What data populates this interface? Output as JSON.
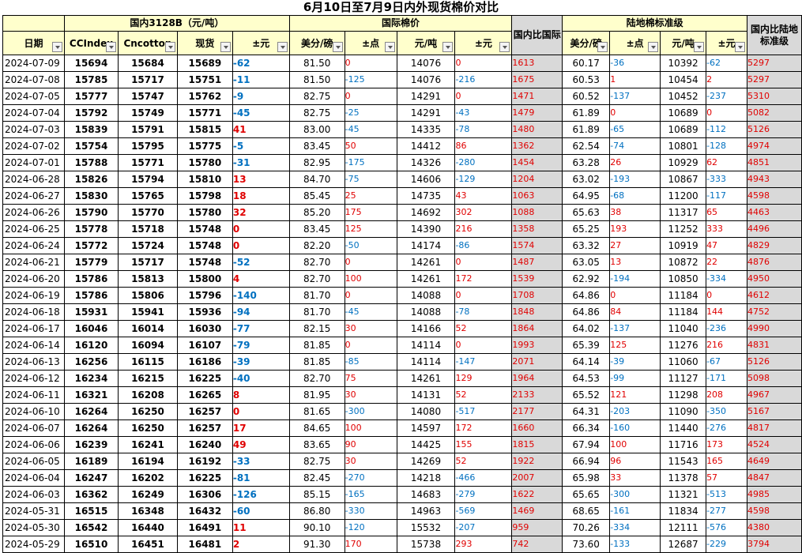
{
  "title": "6月10日至7月9日内外现货棉价对比",
  "groups": {
    "domestic": "国内3128B（元/吨）",
    "intl": "国际棉价",
    "intl_ratio": "国内比国际",
    "land": "陆地棉标准级",
    "land_ratio": "国内比陆地标准级"
  },
  "headers": [
    "日期",
    "CCIndex",
    "Cncotton",
    "现货",
    "±元",
    "美分/磅",
    "±点",
    "元/吨",
    "±元",
    "国内比国际",
    "美分/磅",
    "±点",
    "元/吨",
    "±元",
    "国内比陆地标准级"
  ],
  "rows": [
    [
      "2024-07-09",
      "15694",
      "15684",
      "15689",
      "-62",
      "81.50",
      "0",
      "14076",
      "0",
      "1613",
      "60.17",
      "-36",
      "10392",
      "-62",
      "5297"
    ],
    [
      "2024-07-08",
      "15785",
      "15717",
      "15751",
      "-11",
      "81.50",
      "-125",
      "14076",
      "-216",
      "1675",
      "60.53",
      "1",
      "10454",
      "2",
      "5297"
    ],
    [
      "2024-07-05",
      "15777",
      "15747",
      "15762",
      "-9",
      "82.75",
      "0",
      "14291",
      "0",
      "1471",
      "60.52",
      "-137",
      "10452",
      "-237",
      "5310"
    ],
    [
      "2024-07-04",
      "15792",
      "15749",
      "15771",
      "-45",
      "82.75",
      "-25",
      "14291",
      "-43",
      "1479",
      "61.89",
      "0",
      "10689",
      "0",
      "5082"
    ],
    [
      "2024-07-03",
      "15839",
      "15791",
      "15815",
      "41",
      "83.00",
      "-45",
      "14335",
      "-78",
      "1480",
      "61.89",
      "-65",
      "10689",
      "-112",
      "5126"
    ],
    [
      "2024-07-02",
      "15754",
      "15795",
      "15775",
      "-5",
      "83.45",
      "50",
      "14412",
      "86",
      "1362",
      "62.54",
      "-74",
      "10801",
      "-128",
      "4974"
    ],
    [
      "2024-07-01",
      "15788",
      "15771",
      "15780",
      "-31",
      "82.95",
      "-175",
      "14326",
      "-280",
      "1454",
      "63.28",
      "26",
      "10929",
      "62",
      "4851"
    ],
    [
      "2024-06-28",
      "15826",
      "15794",
      "15810",
      "13",
      "84.70",
      "-75",
      "14606",
      "-129",
      "1204",
      "63.02",
      "-193",
      "10867",
      "-333",
      "4943"
    ],
    [
      "2024-06-27",
      "15830",
      "15765",
      "15798",
      "18",
      "85.45",
      "25",
      "14735",
      "43",
      "1063",
      "64.95",
      "-68",
      "11200",
      "-117",
      "4598"
    ],
    [
      "2024-06-26",
      "15790",
      "15770",
      "15780",
      "32",
      "85.20",
      "175",
      "14692",
      "302",
      "1088",
      "65.63",
      "38",
      "11317",
      "65",
      "4463"
    ],
    [
      "2024-06-25",
      "15778",
      "15718",
      "15748",
      "0",
      "83.45",
      "125",
      "14390",
      "216",
      "1358",
      "65.25",
      "193",
      "11252",
      "333",
      "4496"
    ],
    [
      "2024-06-24",
      "15772",
      "15724",
      "15748",
      "0",
      "82.20",
      "-50",
      "14174",
      "-86",
      "1574",
      "63.32",
      "27",
      "10919",
      "47",
      "4829"
    ],
    [
      "2024-06-21",
      "15779",
      "15717",
      "15748",
      "-52",
      "82.70",
      "0",
      "14261",
      "0",
      "1487",
      "63.05",
      "13",
      "10872",
      "22",
      "4876"
    ],
    [
      "2024-06-20",
      "15786",
      "15813",
      "15800",
      "4",
      "82.70",
      "100",
      "14261",
      "172",
      "1539",
      "62.92",
      "-194",
      "10850",
      "-334",
      "4950"
    ],
    [
      "2024-06-19",
      "15786",
      "15806",
      "15796",
      "-140",
      "81.70",
      "0",
      "14088",
      "0",
      "1708",
      "64.86",
      "0",
      "11184",
      "0",
      "4612"
    ],
    [
      "2024-06-18",
      "15931",
      "15941",
      "15936",
      "-94",
      "81.70",
      "-45",
      "14088",
      "-78",
      "1848",
      "64.86",
      "84",
      "11184",
      "144",
      "4752"
    ],
    [
      "2024-06-17",
      "16046",
      "16014",
      "16030",
      "-77",
      "82.15",
      "30",
      "14166",
      "52",
      "1864",
      "64.02",
      "-137",
      "11040",
      "-236",
      "4990"
    ],
    [
      "2024-06-14",
      "16120",
      "16094",
      "16107",
      "-79",
      "81.85",
      "0",
      "14114",
      "0",
      "1993",
      "65.39",
      "125",
      "11276",
      "216",
      "4831"
    ],
    [
      "2024-06-13",
      "16256",
      "16115",
      "16186",
      "-39",
      "81.85",
      "-85",
      "14114",
      "-147",
      "2071",
      "64.14",
      "-39",
      "11060",
      "-67",
      "5126"
    ],
    [
      "2024-06-12",
      "16234",
      "16215",
      "16225",
      "-40",
      "82.70",
      "75",
      "14261",
      "129",
      "1964",
      "64.53",
      "-99",
      "11127",
      "-171",
      "5098"
    ],
    [
      "2024-06-11",
      "16321",
      "16208",
      "16265",
      "8",
      "81.95",
      "30",
      "14131",
      "52",
      "2133",
      "65.52",
      "121",
      "11298",
      "208",
      "4967"
    ],
    [
      "2024-06-10",
      "16264",
      "16250",
      "16257",
      "0",
      "81.65",
      "-300",
      "14080",
      "-517",
      "2177",
      "64.31",
      "-203",
      "11090",
      "-350",
      "5167"
    ],
    [
      "2024-06-07",
      "16264",
      "16250",
      "16257",
      "17",
      "84.65",
      "100",
      "14597",
      "172",
      "1660",
      "66.34",
      "-160",
      "11440",
      "-276",
      "4817"
    ],
    [
      "2024-06-06",
      "16239",
      "16241",
      "16240",
      "49",
      "83.65",
      "90",
      "14425",
      "155",
      "1815",
      "67.94",
      "100",
      "11716",
      "173",
      "4524"
    ],
    [
      "2024-06-05",
      "16189",
      "16194",
      "16192",
      "-33",
      "82.75",
      "30",
      "14269",
      "52",
      "1922",
      "66.94",
      "96",
      "11543",
      "165",
      "4649"
    ],
    [
      "2024-06-04",
      "16247",
      "16202",
      "16225",
      "-81",
      "82.45",
      "-270",
      "14218",
      "-466",
      "2007",
      "65.98",
      "33",
      "11378",
      "57",
      "4847"
    ],
    [
      "2024-06-03",
      "16362",
      "16249",
      "16306",
      "-126",
      "85.15",
      "-165",
      "14683",
      "-279",
      "1622",
      "65.65",
      "-300",
      "11321",
      "-513",
      "4985"
    ],
    [
      "2024-05-31",
      "16515",
      "16348",
      "16432",
      "-60",
      "86.80",
      "-330",
      "14963",
      "-569",
      "1469",
      "68.65",
      "-161",
      "11834",
      "-277",
      "4598"
    ],
    [
      "2024-05-30",
      "16542",
      "16440",
      "16491",
      "11",
      "90.10",
      "-120",
      "15532",
      "-207",
      "959",
      "70.26",
      "-334",
      "12111",
      "-576",
      "4380"
    ],
    [
      "2024-05-29",
      "16510",
      "16451",
      "16481",
      "2",
      "91.30",
      "170",
      "15738",
      "293",
      "742",
      "73.60",
      "-133",
      "12687",
      "-229",
      "3794"
    ]
  ]
}
